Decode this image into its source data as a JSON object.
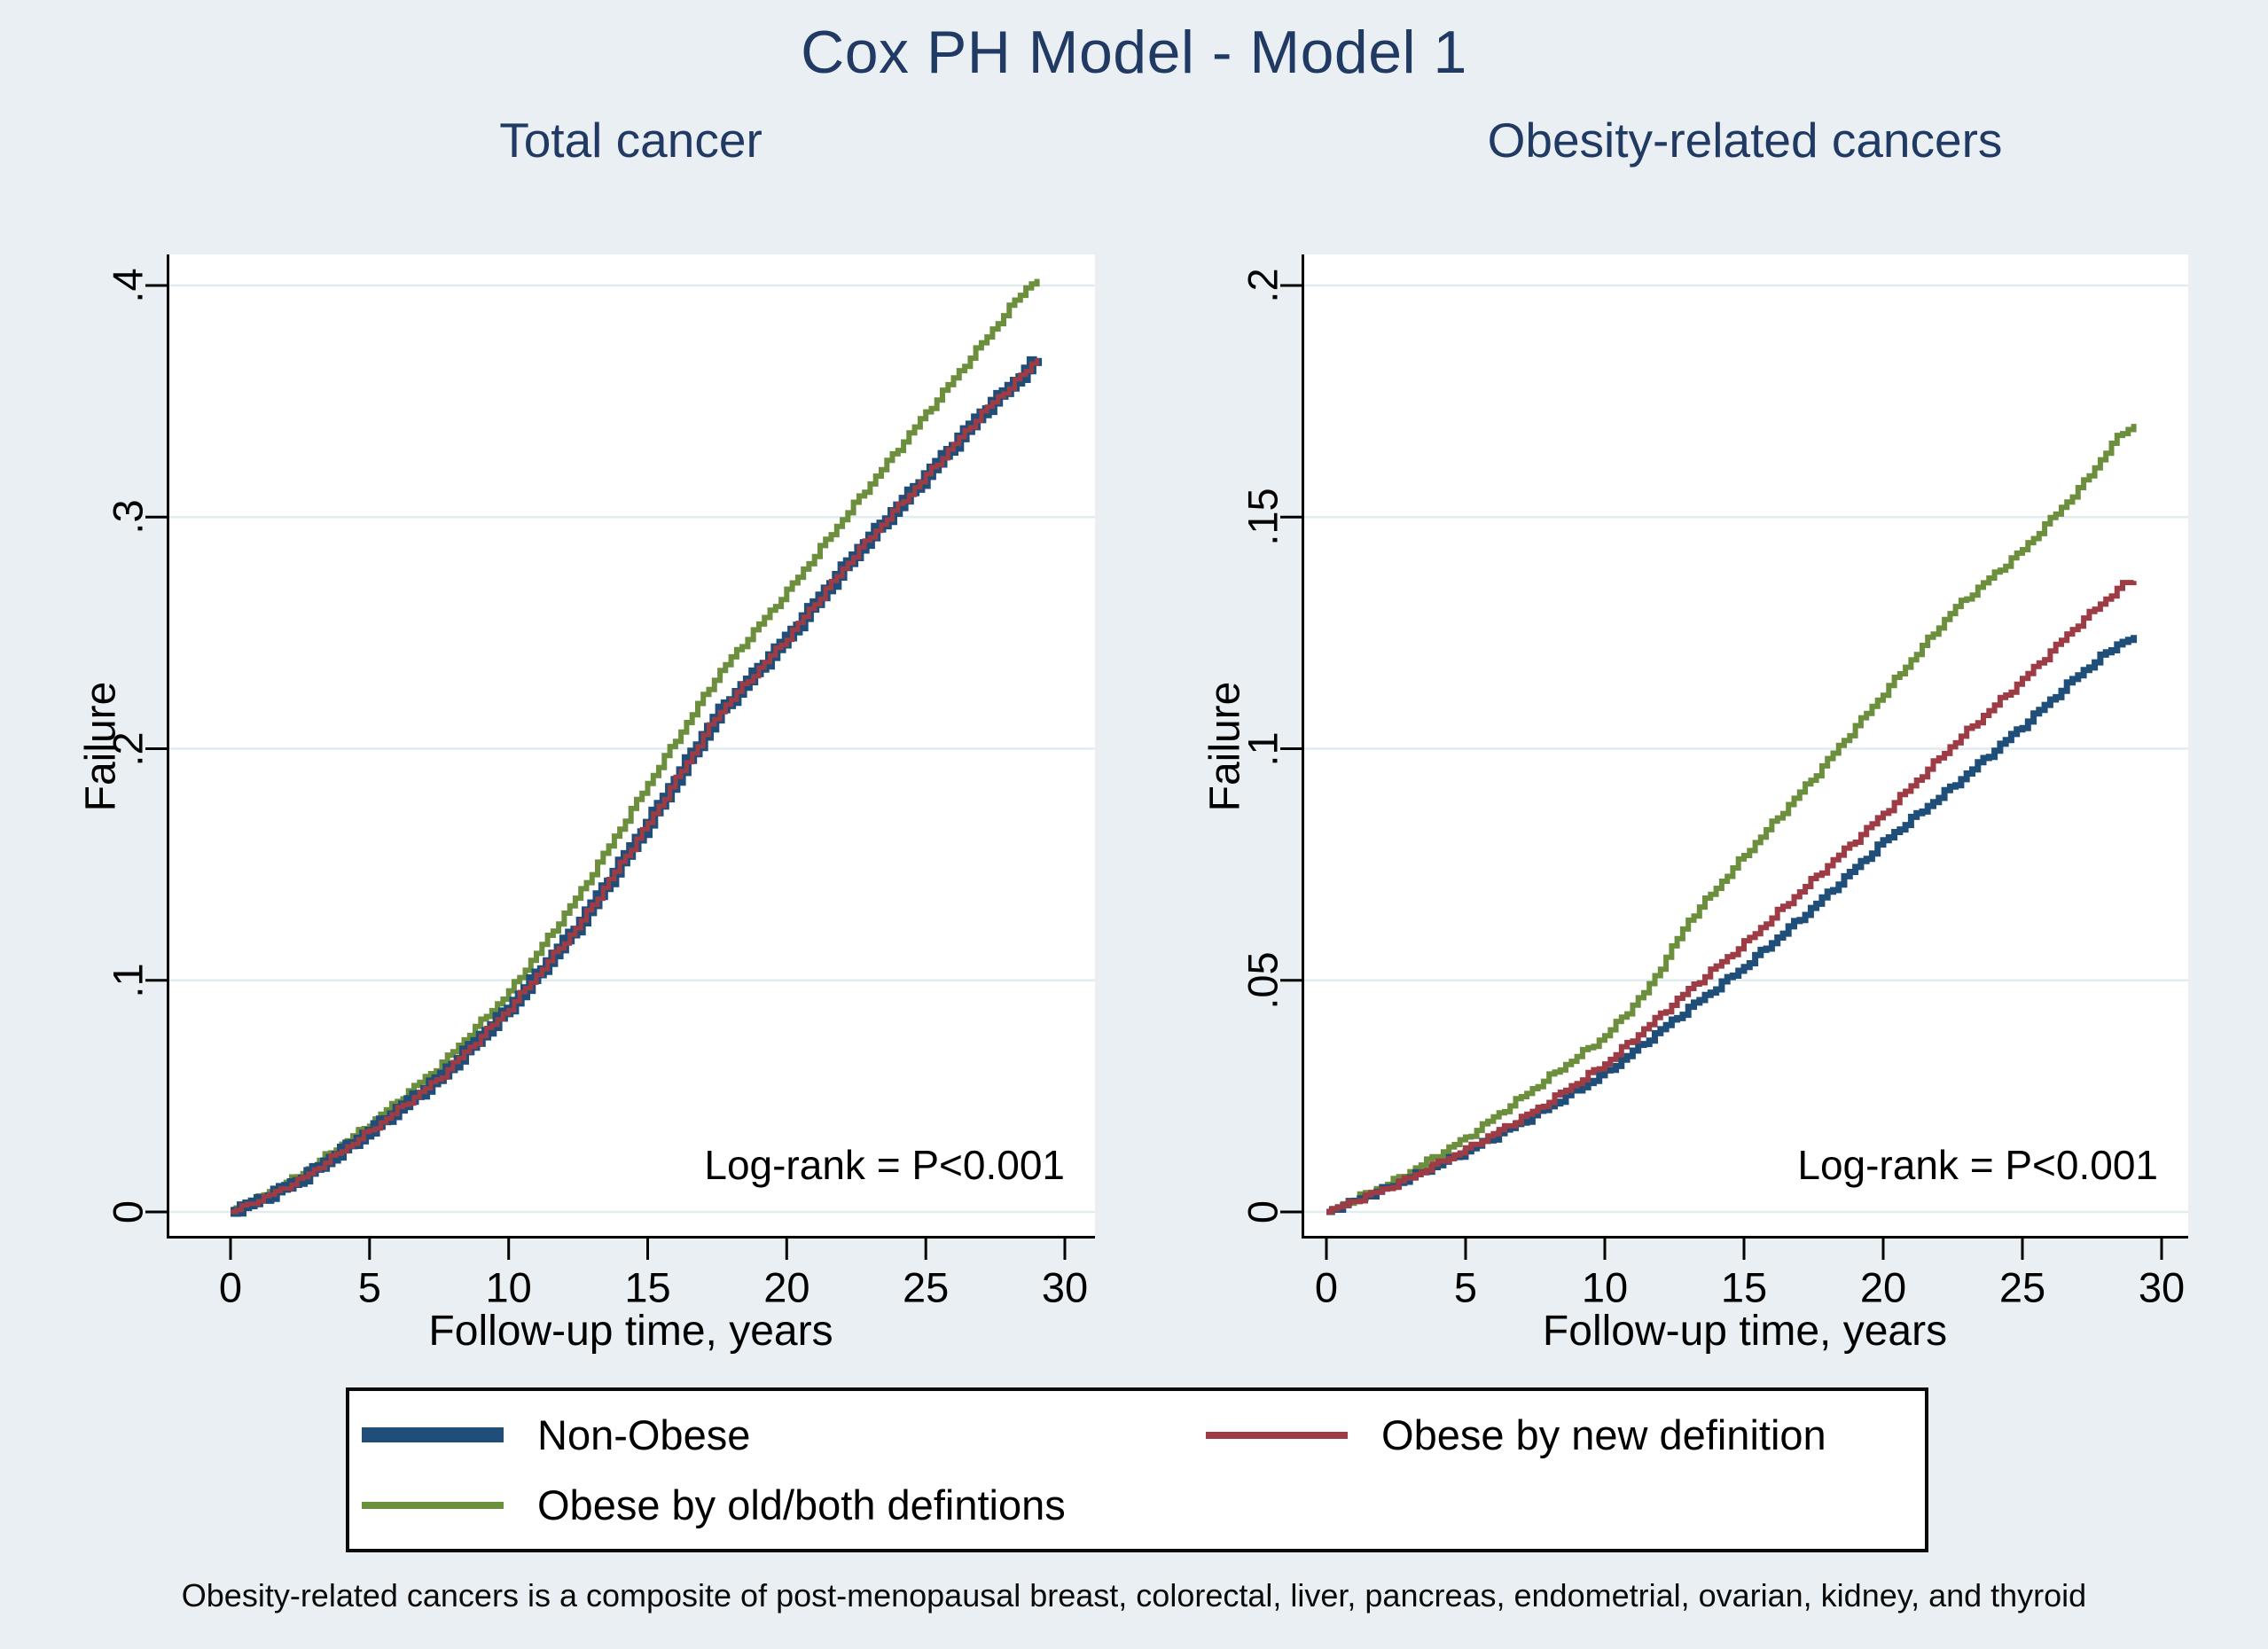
{
  "title": "Cox PH Model - Model 1",
  "footnote": "Obesity-related cancers is a composite of post-menopausal breast, colorectal, liver, pancreas, endometrial, ovarian, kidney, and thyroid",
  "colors": {
    "background": "#e9eff2",
    "plot_bg": "#ffffff",
    "grid": "#e2ecef",
    "axis": "#000000",
    "title_text": "#213a63",
    "annotation_text": "#000000",
    "non_obese": "#1f4e79",
    "obese_new": "#9e3c46",
    "obese_old": "#6c8f3e"
  },
  "legend": {
    "position": "bottom",
    "entries": [
      {
        "label": "Non-Obese",
        "color_key": "non_obese",
        "thick": true
      },
      {
        "label": "Obese by new definition",
        "color_key": "obese_new",
        "thick": false
      },
      {
        "label": "Obese by old/both defintions",
        "color_key": "obese_old",
        "thick": false
      }
    ]
  },
  "chart_data": [
    {
      "type": "line",
      "title": "Total cancer",
      "xlabel": "Follow-up time, years",
      "ylabel": "Failure",
      "annotation": "Log-rank = P<0.001",
      "xlim": [
        0,
        30
      ],
      "ylim": [
        0,
        0.4
      ],
      "grid": true,
      "xticks": [
        0,
        5,
        10,
        15,
        20,
        25,
        30
      ],
      "xtick_labels": [
        "0",
        "5",
        "10",
        "15",
        "20",
        "25",
        "30"
      ],
      "yticks": [
        0,
        0.1,
        0.2,
        0.3,
        0.4
      ],
      "ytick_labels": [
        "0",
        ".1",
        ".2",
        ".3",
        ".4"
      ],
      "x": [
        0,
        1,
        2.5,
        5,
        7.5,
        10,
        12.5,
        15,
        17.5,
        20,
        22.5,
        25,
        27,
        28.5,
        29
      ],
      "series": [
        {
          "name": "Obese by old/both defintions",
          "key": "obese_old",
          "line_width": 6,
          "values": [
            0,
            0.006,
            0.016,
            0.038,
            0.063,
            0.095,
            0.137,
            0.185,
            0.232,
            0.268,
            0.307,
            0.345,
            0.375,
            0.398,
            0.403
          ]
        },
        {
          "name": "Non-Obese",
          "key": "non_obese",
          "line_width": 11,
          "values": [
            0,
            0.005,
            0.014,
            0.035,
            0.058,
            0.088,
            0.124,
            0.168,
            0.215,
            0.248,
            0.285,
            0.318,
            0.345,
            0.362,
            0.369
          ]
        },
        {
          "name": "Obese by new definition",
          "key": "obese_new",
          "line_width": 5,
          "values": [
            0,
            0.005,
            0.014,
            0.035,
            0.058,
            0.088,
            0.124,
            0.168,
            0.215,
            0.248,
            0.285,
            0.318,
            0.345,
            0.362,
            0.369
          ]
        }
      ]
    },
    {
      "type": "line",
      "title": "Obesity-related cancers",
      "xlabel": "Follow-up time, years",
      "ylabel": "Failure",
      "annotation": "Log-rank = P<0.001",
      "xlim": [
        0,
        30
      ],
      "ylim": [
        0,
        0.2
      ],
      "grid": true,
      "xticks": [
        0,
        5,
        10,
        15,
        20,
        25,
        30
      ],
      "xtick_labels": [
        "0",
        "5",
        "10",
        "15",
        "20",
        "25",
        "30"
      ],
      "yticks": [
        0,
        0.05,
        0.1,
        0.15,
        0.2
      ],
      "ytick_labels": [
        "0",
        ".05",
        ".1",
        ".15",
        ".2"
      ],
      "x": [
        0,
        2.5,
        5,
        7.5,
        10,
        11.5,
        13,
        15,
        17.5,
        20,
        22.5,
        25,
        27,
        28.5,
        29
      ],
      "series": [
        {
          "name": "Obese by old/both defintions",
          "key": "obese_old",
          "line_width": 6,
          "values": [
            0,
            0.007,
            0.016,
            0.027,
            0.038,
            0.048,
            0.063,
            0.077,
            0.094,
            0.112,
            0.13,
            0.143,
            0.156,
            0.168,
            0.17
          ]
        },
        {
          "name": "Non-Obese",
          "key": "non_obese",
          "line_width": 7,
          "values": [
            0,
            0.006,
            0.013,
            0.021,
            0.03,
            0.037,
            0.044,
            0.053,
            0.066,
            0.08,
            0.092,
            0.105,
            0.116,
            0.123,
            0.124
          ]
        },
        {
          "name": "Obese by new definition",
          "key": "obese_new",
          "line_width": 6,
          "values": [
            0,
            0.006,
            0.0135,
            0.022,
            0.032,
            0.04,
            0.048,
            0.058,
            0.072,
            0.086,
            0.101,
            0.115,
            0.127,
            0.135,
            0.1365
          ]
        }
      ]
    }
  ]
}
